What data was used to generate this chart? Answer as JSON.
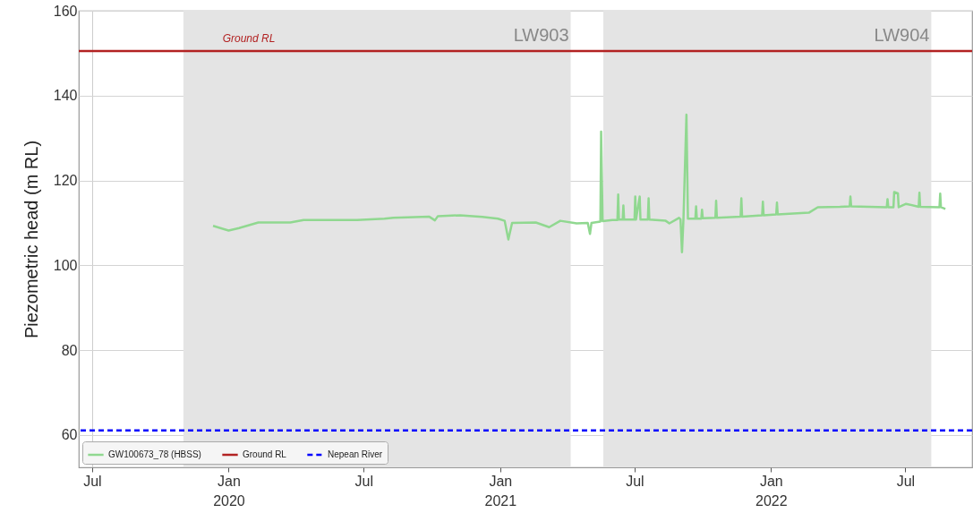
{
  "chart_data": {
    "type": "line",
    "ylabel": "Piezometric head (m RL)",
    "xlim": [
      "2019-06-13",
      "2022-09-29"
    ],
    "ylim": [
      52.4,
      160
    ],
    "yticks": [
      60,
      80,
      100,
      120,
      140,
      160
    ],
    "xticks": [
      {
        "value": "2019-07-01",
        "label": "Jul"
      },
      {
        "value": "2020-01-01",
        "label": "Jan\n2020"
      },
      {
        "value": "2020-07-01",
        "label": "Jul"
      },
      {
        "value": "2021-01-01",
        "label": "Jan\n2021"
      },
      {
        "value": "2021-07-01",
        "label": "Jul"
      },
      {
        "value": "2022-01-01",
        "label": "Jan\n2022"
      },
      {
        "value": "2022-07-01",
        "label": "Jul"
      }
    ],
    "grid": true,
    "legend": "bottom left",
    "line_style": "solid",
    "marker": "none",
    "series": [
      {
        "name": "GW100673_78 (HBSS)",
        "color": "#90d890",
        "x": [
          "2019-12-11",
          "2020-01-01",
          "2020-01-15",
          "2020-02-10",
          "2020-03-24",
          "2020-04-11",
          "2020-06-22",
          "2020-07-29",
          "2020-08-10",
          "2020-09-27",
          "2020-10-05",
          "2020-10-09",
          "2020-11-08",
          "2020-12-08",
          "2020-12-29",
          "2021-01-07",
          "2021-01-12",
          "2021-01-17",
          "2021-02-18",
          "2021-03-08",
          "2021-03-23",
          "2021-04-14",
          "2021-04-29",
          "2021-05-02",
          "2021-05-04",
          "2021-05-16",
          "2021-05-17",
          "2021-05-19",
          "2021-06-01",
          "2021-06-08",
          "2021-06-09",
          "2021-06-10",
          "2021-06-15",
          "2021-06-16",
          "2021-06-17",
          "2021-07-01",
          "2021-07-02",
          "2021-07-03",
          "2021-07-08",
          "2021-07-09",
          "2021-07-19",
          "2021-07-20",
          "2021-07-21",
          "2021-08-12",
          "2021-08-17",
          "2021-08-30",
          "2021-09-01",
          "2021-09-03",
          "2021-09-05",
          "2021-09-09",
          "2021-09-11",
          "2021-09-21",
          "2021-09-22",
          "2021-09-23",
          "2021-09-29",
          "2021-09-30",
          "2021-10-01",
          "2021-10-18",
          "2021-10-19",
          "2021-10-20",
          "2021-11-21",
          "2021-11-22",
          "2021-11-23",
          "2021-12-20",
          "2021-12-21",
          "2021-12-22",
          "2022-01-08",
          "2022-01-09",
          "2022-01-10",
          "2022-02-21",
          "2022-03-05",
          "2022-04-04",
          "2022-04-17",
          "2022-04-18",
          "2022-04-19",
          "2022-06-06",
          "2022-06-07",
          "2022-06-08",
          "2022-06-15",
          "2022-06-16",
          "2022-06-21",
          "2022-06-22",
          "2022-07-02",
          "2022-07-19",
          "2022-07-20",
          "2022-07-21",
          "2022-08-16",
          "2022-08-17",
          "2022-08-18",
          "2022-08-24"
        ],
        "values": [
          109.3,
          108.2,
          108.8,
          110.1,
          110.1,
          110.7,
          110.7,
          111.0,
          111.2,
          111.5,
          110.6,
          111.6,
          111.8,
          111.4,
          111.0,
          110.5,
          106.1,
          110.0,
          110.1,
          109.0,
          110.5,
          109.9,
          110.0,
          107.4,
          110.0,
          110.3,
          131.5,
          110.4,
          110.7,
          110.7,
          116.7,
          110.8,
          110.8,
          114.1,
          110.8,
          110.8,
          116.2,
          110.8,
          116.2,
          110.8,
          110.8,
          115.8,
          110.8,
          110.5,
          109.9,
          111.2,
          110.8,
          103.1,
          111.0,
          135.5,
          111.0,
          111.0,
          113.9,
          111.0,
          111.0,
          113.1,
          111.1,
          111.2,
          115.2,
          111.2,
          111.5,
          115.8,
          111.5,
          111.8,
          115.0,
          111.8,
          112.0,
          114.8,
          112.0,
          112.4,
          113.7,
          113.8,
          113.9,
          116.2,
          113.9,
          113.7,
          115.6,
          113.7,
          113.7,
          117.3,
          117.0,
          113.7,
          114.5,
          113.8,
          117.1,
          113.8,
          113.7,
          116.9,
          113.7,
          113.3
        ]
      }
    ],
    "ref_lines": [
      {
        "axis": "y",
        "value": 150.5,
        "label": "Ground RL",
        "color": "#b22222",
        "line_style": "solid"
      },
      {
        "axis": "y",
        "value": 61.1,
        "label": "Nepean River",
        "color": "#0000ff",
        "line_style": "dashed"
      }
    ],
    "bands": [
      {
        "axis": "x",
        "from": "2019-11-01",
        "to": "2021-04-06",
        "label": "LW903",
        "color": "#e4e4e4"
      },
      {
        "axis": "x",
        "from": "2021-05-20",
        "to": "2022-08-05",
        "label": "LW904",
        "color": "#e4e4e4"
      }
    ],
    "annotations": [
      "Ground RL"
    ]
  }
}
